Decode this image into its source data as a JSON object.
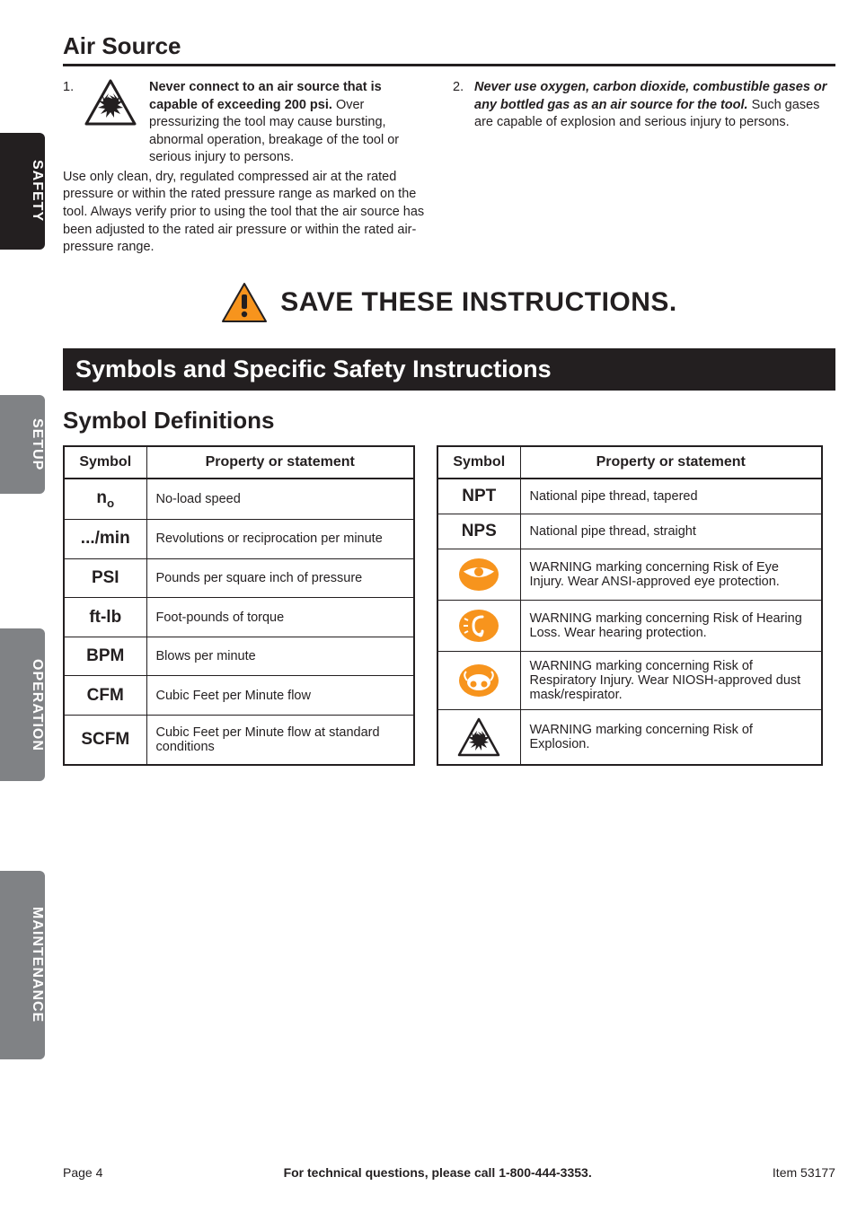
{
  "tabs": {
    "safety": "SAFETY",
    "setup": "SETUP",
    "operation": "OPERATION",
    "maintenance": "MAINTENANCE"
  },
  "air_source_heading": "Air Source",
  "point1": {
    "num": "1.",
    "bold": "Never connect to an air source that is capable of exceeding 200 psi.",
    "rest_inline": "Over pressurizing the tool may cause bursting, abnormal operation, breakage of the tool or serious injury to persons.",
    "rest_full": "Use only clean, dry, regulated compressed air at the rated pressure or within the rated pressure range as marked on the tool.  Always verify prior to using the tool that the air source has been adjusted to the rated air pressure or within the rated air-pressure range."
  },
  "point2": {
    "num": "2.",
    "ital": "Never use oxygen, carbon dioxide, combustible gases or any bottled gas as an air source for the tool.",
    "rest": "  Such gases are capable of explosion and serious injury to persons."
  },
  "save_instructions": "SAVE THESE INSTRUCTIONS.",
  "symbols_heading": "Symbols and Specific Safety Instructions",
  "symbol_definitions_heading": "Symbol Definitions",
  "table_left": {
    "headers": [
      "Symbol",
      "Property or statement"
    ],
    "rows": [
      {
        "sym_html": "n<sub>o</sub>",
        "desc": "No-load speed"
      },
      {
        "sym_html": ".../min",
        "desc": "Revolutions or reciprocation per minute"
      },
      {
        "sym_html": "PSI",
        "desc": "Pounds per square inch of pressure"
      },
      {
        "sym_html": "ft-lb",
        "desc": "Foot-pounds of torque"
      },
      {
        "sym_html": "BPM",
        "desc": "Blows per minute"
      },
      {
        "sym_html": "CFM",
        "desc": "Cubic Feet per Minute flow"
      },
      {
        "sym_html": "SCFM",
        "desc": "Cubic Feet per Minute flow at standard conditions"
      }
    ]
  },
  "table_right": {
    "headers": [
      "Symbol",
      "Property or statement"
    ],
    "rows": [
      {
        "sym_html": "NPT",
        "desc": "National pipe thread, tapered"
      },
      {
        "sym_html": "NPS",
        "desc": "National pipe thread, straight"
      },
      {
        "icon": "eye",
        "desc": "WARNING marking concerning Risk of Eye Injury.  Wear ANSI-approved eye protection."
      },
      {
        "icon": "ear",
        "desc": "WARNING marking concerning Risk of Hearing Loss.  Wear hearing protection."
      },
      {
        "icon": "respirator",
        "desc": "WARNING marking concerning Risk of Respiratory Injury.  Wear NIOSH-approved dust mask/respirator."
      },
      {
        "icon": "explosion",
        "desc": "WARNING marking concerning Risk of Explosion."
      }
    ]
  },
  "footer": {
    "page": "Page 4",
    "mid": "For technical questions, please call 1-800-444-3353.",
    "item": "Item 53177"
  },
  "colors": {
    "black": "#231f20",
    "gray": "#808285",
    "orange": "#f7941d"
  }
}
